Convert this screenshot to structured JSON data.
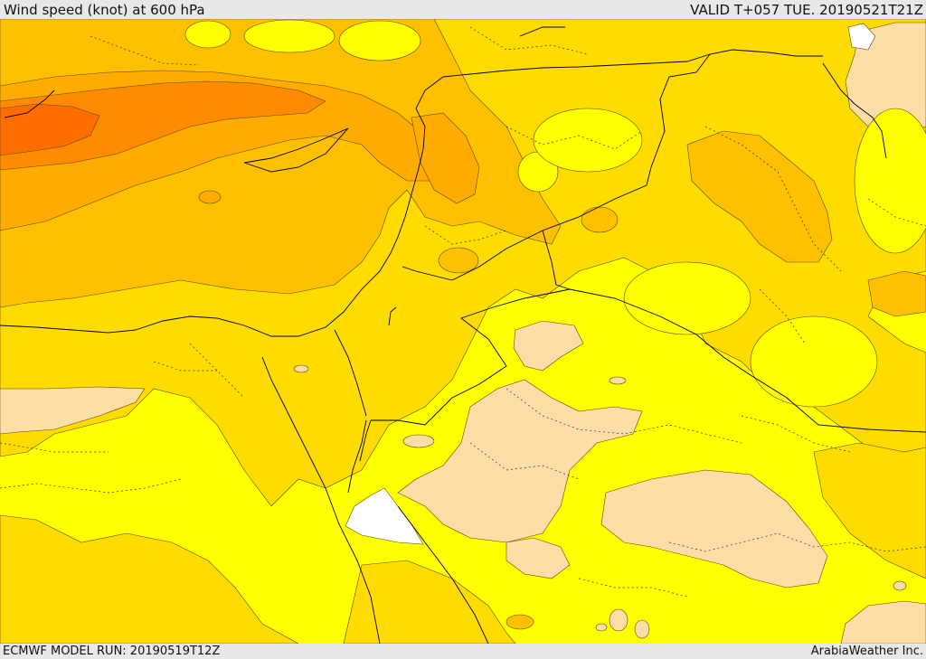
{
  "header": {
    "title": "Wind speed (knot) at 600 hPa",
    "valid": "VALID T+057 TUE. 20190521T21Z"
  },
  "footer": {
    "model_run": "ECMWF MODEL RUN: 20190519T12Z",
    "credit": "ArabiaWeather Inc."
  },
  "colors": {
    "base_yellow": "#ffff00",
    "light_peach": "#fddea6",
    "gold": "#ffdc00",
    "amber": "#ffc000",
    "orange_light": "#ffab00",
    "orange": "#ff8c00",
    "orange_deep": "#ff6d00",
    "white": "#ffffff",
    "contour": "#5a4a00",
    "border": "#000000"
  }
}
